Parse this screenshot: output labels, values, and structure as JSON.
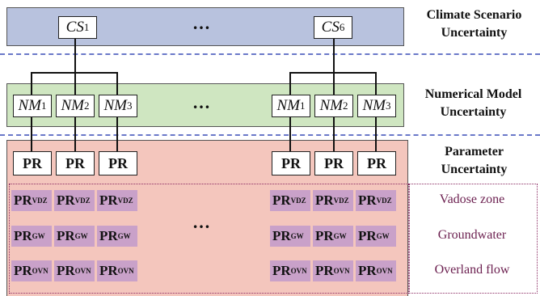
{
  "climate": {
    "title_line1": "Climate Scenario",
    "title_line2": "Uncertainty",
    "cs_left_main": "CS",
    "cs_left_sub": "1",
    "cs_right_main": "CS",
    "cs_right_sub": "6",
    "ellipsis": "…"
  },
  "model": {
    "title_line1": "Numerical Model",
    "title_line2": "Uncertainty",
    "nm_main": "NM",
    "nm_subs": [
      "1",
      "2",
      "3"
    ],
    "ellipsis": "…"
  },
  "parameter": {
    "title_line1": "Parameter",
    "title_line2": "Uncertainty",
    "pr_label": "PR",
    "ellipsis": "…",
    "tile_main": "PR",
    "rows": [
      {
        "sub": "VDZ",
        "label": "Vadose zone"
      },
      {
        "sub": "GW",
        "label": "Groundwater"
      },
      {
        "sub": "OVN",
        "label": "Overland flow"
      }
    ]
  }
}
